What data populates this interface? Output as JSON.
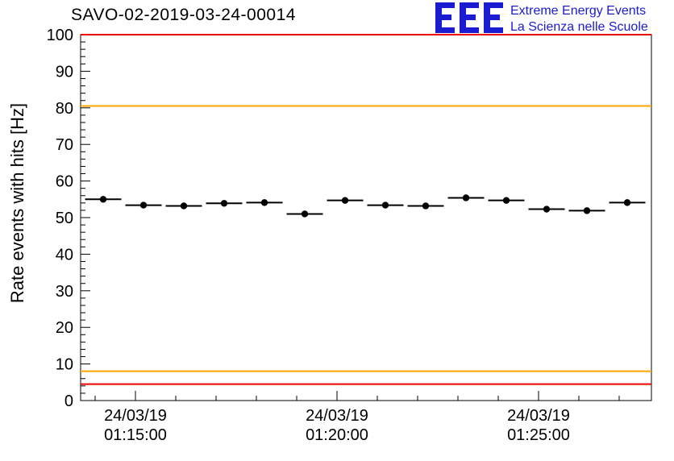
{
  "header": {
    "title": "SAVO-02-2019-03-24-00014",
    "logo": {
      "monogram": "EEE",
      "line1": "Extreme Energy Events",
      "line2": "La Scienza nelle Scuole",
      "color": "#1b1bd2"
    }
  },
  "chart_data": {
    "type": "scatter",
    "title": "SAVO-02-2019-03-24-00014",
    "xlabel": "",
    "ylabel": "Rate events with hits [Hz]",
    "ylim": [
      0,
      100
    ],
    "y_tick_step": 10,
    "y_minor_step": 2,
    "grid": false,
    "legend": "none",
    "x_axis": {
      "range_min_rel": [
        -1.36,
        12.8
      ],
      "minor_step_min": 1,
      "major_ticks": [
        {
          "offset_min": 0,
          "label_date": "24/03/19",
          "label_time": "01:15:00"
        },
        {
          "offset_min": 5,
          "label_date": "24/03/19",
          "label_time": "01:20:00"
        },
        {
          "offset_min": 10,
          "label_date": "24/03/19",
          "label_time": "01:25:00"
        }
      ]
    },
    "series": [
      {
        "name": "rate events with hits",
        "marker": "filled-circle",
        "color": "#000000",
        "bin_half_width_min": 0.45,
        "points": [
          {
            "x_offset_min": -0.8,
            "y_hz": 55.0
          },
          {
            "x_offset_min": 0.2,
            "y_hz": 53.4
          },
          {
            "x_offset_min": 1.2,
            "y_hz": 53.2
          },
          {
            "x_offset_min": 2.2,
            "y_hz": 53.9
          },
          {
            "x_offset_min": 3.2,
            "y_hz": 54.1
          },
          {
            "x_offset_min": 4.2,
            "y_hz": 51.0
          },
          {
            "x_offset_min": 5.2,
            "y_hz": 54.7
          },
          {
            "x_offset_min": 6.2,
            "y_hz": 53.4
          },
          {
            "x_offset_min": 7.2,
            "y_hz": 53.2
          },
          {
            "x_offset_min": 8.2,
            "y_hz": 55.4
          },
          {
            "x_offset_min": 9.2,
            "y_hz": 54.7
          },
          {
            "x_offset_min": 10.2,
            "y_hz": 52.3
          },
          {
            "x_offset_min": 11.2,
            "y_hz": 51.9
          },
          {
            "x_offset_min": 12.2,
            "y_hz": 54.1
          }
        ]
      }
    ],
    "thresholds": [
      {
        "y_hz": 100.0,
        "color": "#ee0000"
      },
      {
        "y_hz": 80.5,
        "color": "#ffa500"
      },
      {
        "y_hz": 8.0,
        "color": "#ffa500"
      },
      {
        "y_hz": 4.5,
        "color": "#ee0000"
      }
    ]
  }
}
